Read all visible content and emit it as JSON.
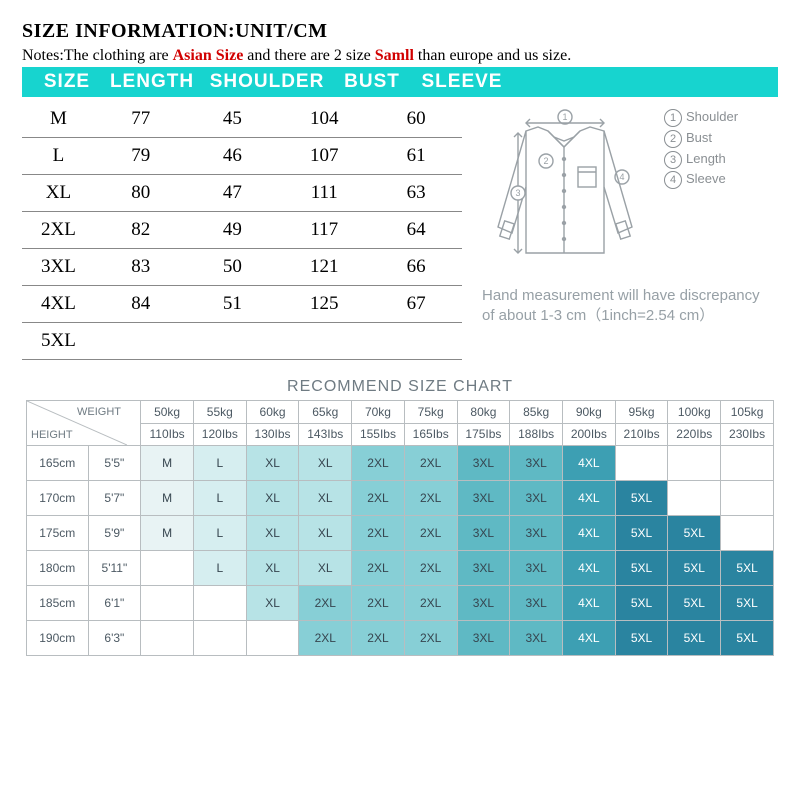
{
  "title": "SIZE INFORMATION:UNIT/CM",
  "notes": {
    "prefix": "Notes:The clothing are ",
    "red1": "Asian Size",
    "mid": " and there are 2 size ",
    "red2": "Samll",
    "suffix": " than europe and us size."
  },
  "header_band": {
    "size": "SIZE",
    "length": "LENGTH",
    "shoulder": "SHOULDER",
    "bust": "BUST",
    "sleeve": "SLEEVE",
    "bg_color": "#17d4cf",
    "text_color": "#ffffff"
  },
  "size_table": {
    "columns": [
      "SIZE",
      "LENGTH",
      "SHOULDER",
      "BUST",
      "SLEEVE"
    ],
    "rows": [
      [
        "M",
        "77",
        "45",
        "104",
        "60"
      ],
      [
        "L",
        "79",
        "46",
        "107",
        "61"
      ],
      [
        "XL",
        "80",
        "47",
        "111",
        "63"
      ],
      [
        "2XL",
        "82",
        "49",
        "117",
        "64"
      ],
      [
        "3XL",
        "83",
        "50",
        "121",
        "66"
      ],
      [
        "4XL",
        "84",
        "51",
        "125",
        "67"
      ],
      [
        "5XL",
        "",
        "",
        "",
        ""
      ]
    ]
  },
  "diagram": {
    "stroke": "#9aa1a6",
    "legend": [
      {
        "num": "1",
        "label": "Shoulder"
      },
      {
        "num": "2",
        "label": "Bust"
      },
      {
        "num": "3",
        "label": "Length"
      },
      {
        "num": "4",
        "label": "Sleeve"
      }
    ],
    "disclaimer": "Hand measurement will have discrepancy of about 1-3 cm（1inch=2.54 cm）"
  },
  "recommend": {
    "title": "RECOMMEND SIZE CHART",
    "weight_label": "WEIGHT",
    "height_label": "HEIGHT",
    "weights_kg": [
      "50kg",
      "55kg",
      "60kg",
      "65kg",
      "70kg",
      "75kg",
      "80kg",
      "85kg",
      "90kg",
      "95kg",
      "100kg",
      "105kg"
    ],
    "weights_lbs": [
      "110Ibs",
      "120Ibs",
      "130Ibs",
      "143Ibs",
      "155Ibs",
      "165Ibs",
      "175Ibs",
      "188Ibs",
      "200Ibs",
      "210Ibs",
      "220Ibs",
      "230Ibs"
    ],
    "heights": [
      {
        "cm": "165cm",
        "ft": "5'5\""
      },
      {
        "cm": "170cm",
        "ft": "5'7\""
      },
      {
        "cm": "175cm",
        "ft": "5'9\""
      },
      {
        "cm": "180cm",
        "ft": "5'11\""
      },
      {
        "cm": "185cm",
        "ft": "6'1\""
      },
      {
        "cm": "190cm",
        "ft": "6'3\""
      }
    ],
    "grid": [
      [
        "M",
        "L",
        "XL",
        "XL",
        "2XL",
        "2XL",
        "3XL",
        "3XL",
        "4XL",
        "",
        "",
        ""
      ],
      [
        "M",
        "L",
        "XL",
        "XL",
        "2XL",
        "2XL",
        "3XL",
        "3XL",
        "4XL",
        "5XL",
        "",
        ""
      ],
      [
        "M",
        "L",
        "XL",
        "XL",
        "2XL",
        "2XL",
        "3XL",
        "3XL",
        "4XL",
        "5XL",
        "5XL",
        ""
      ],
      [
        "",
        "L",
        "XL",
        "XL",
        "2XL",
        "2XL",
        "3XL",
        "3XL",
        "4XL",
        "5XL",
        "5XL",
        "5XL"
      ],
      [
        "",
        "",
        "XL",
        "2XL",
        "2XL",
        "2XL",
        "3XL",
        "3XL",
        "4XL",
        "5XL",
        "5XL",
        "5XL"
      ],
      [
        "",
        "",
        "",
        "2XL",
        "2XL",
        "2XL",
        "3XL",
        "3XL",
        "4XL",
        "5XL",
        "5XL",
        "5XL"
      ]
    ],
    "palette_by_size": {
      "": "#ffffff",
      "M": "#e8f3f4",
      "L": "#d6eef0",
      "XL": "#b7e3e6",
      "2XL": "#87cfd6",
      "3XL": "#5fb9c4",
      "4XL": "#3d9fb3",
      "5XL": "#2a84a0"
    },
    "text_dark": "#36454f",
    "text_light": "#ffffff",
    "border_color": "#b8bdc0"
  }
}
